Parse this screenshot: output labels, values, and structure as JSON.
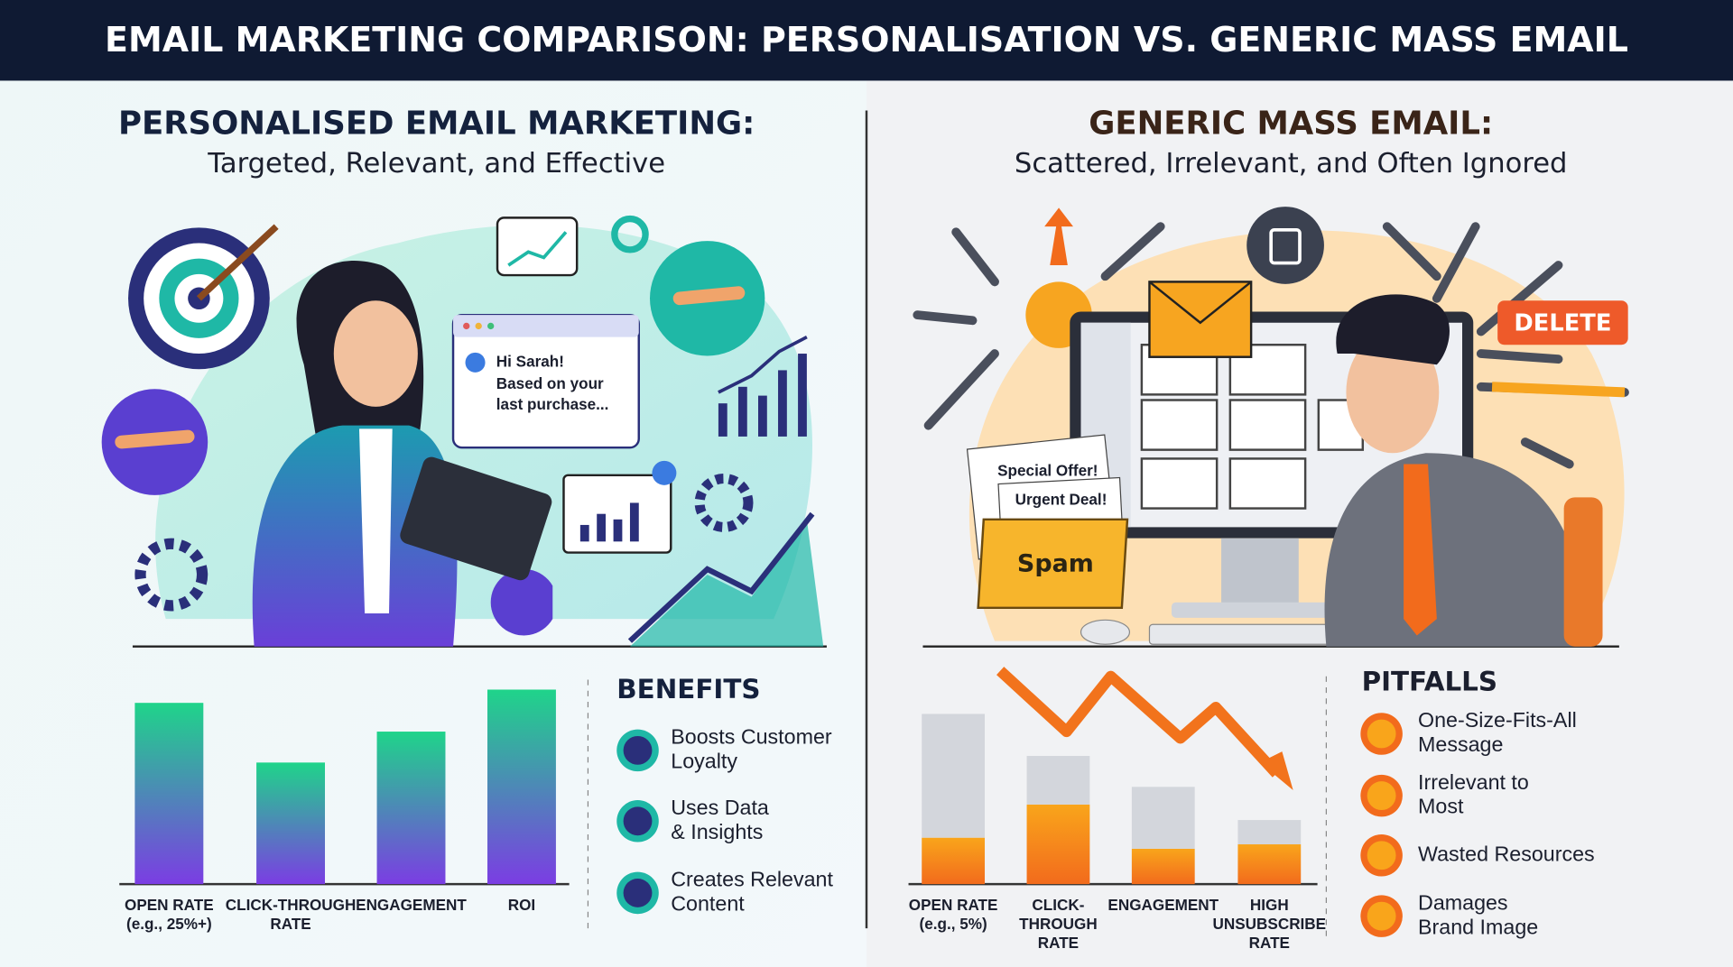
{
  "header": {
    "title": "EMAIL MARKETING COMPARISON: PERSONALISATION VS. GENERIC MASS EMAIL"
  },
  "left": {
    "heading": "PERSONALISED EMAIL MARKETING:",
    "subheading": "Targeted, Relevant, and Effective",
    "chat": [
      "Hi Sarah!",
      "Based on your",
      "last purchase..."
    ],
    "list_title": "BENEFITS",
    "items": [
      [
        "Boosts Customer",
        "Loyalty"
      ],
      [
        "Uses Data",
        "& Insights"
      ],
      [
        "Creates Relevant",
        "Content"
      ]
    ]
  },
  "right": {
    "heading": "GENERIC MASS EMAIL:",
    "subheading": "Scattered, Irrelevant, and Often Ignored",
    "papers": [
      "Special Offer!",
      "Urgent Deal!"
    ],
    "folder": "Spam",
    "button": "DELETE",
    "list_title": "PITFALLS",
    "items": [
      [
        "One-Size-Fits-All",
        "Message"
      ],
      [
        "Irrelevant to",
        "Most"
      ],
      [
        "Wasted Resources"
      ],
      [
        "Damages",
        "Brand Image"
      ]
    ]
  },
  "chart_data": [
    {
      "type": "bar",
      "categories": [
        [
          "OPEN RATE",
          "(e.g., 25%+)"
        ],
        [
          "CLICK-THROUGH",
          "RATE"
        ],
        [
          "ENGAGEMENT"
        ],
        [
          "ROI"
        ]
      ],
      "series": [
        {
          "color": [
            "#1fd48a",
            "#7b3de3"
          ],
          "values": [
            82,
            55,
            69,
            88
          ]
        }
      ]
    },
    {
      "type": "bar",
      "stacked": true,
      "categories": [
        [
          "OPEN RATE",
          "(e.g., 5%)"
        ],
        [
          "CLICK-",
          "THROUGH",
          "RATE"
        ],
        [
          "ENGAGEMENT"
        ],
        [
          "HIGH",
          "UNSUBSCRIBE",
          "RATE"
        ]
      ],
      "series": [
        {
          "color": [
            "#f9a51b",
            "#f26b1c"
          ],
          "values": [
            21,
            36,
            16,
            18
          ]
        },
        {
          "color": [
            "#d3d6dc",
            "#d3d6dc"
          ],
          "values": [
            56,
            22,
            28,
            11
          ]
        }
      ]
    }
  ]
}
